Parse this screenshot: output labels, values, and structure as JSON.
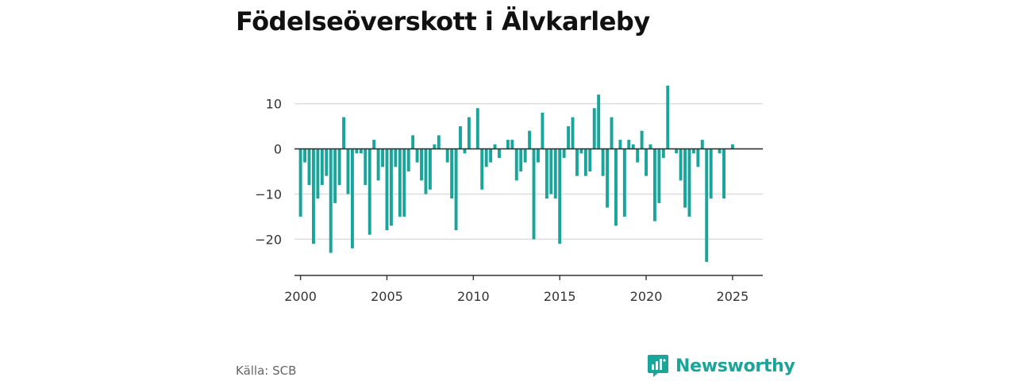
{
  "title": "Födelseöverskott i Älvkarleby",
  "source": "Källa: SCB",
  "brand": {
    "name": "Newsworthy",
    "icon": "newsworthy-logo-icon",
    "color": "#1aa59b"
  },
  "colors": {
    "bar": "#1aa59b",
    "grid": "#dddddd",
    "axis": "#333333",
    "tick": "#333333"
  },
  "chart_data": {
    "type": "bar",
    "title": "Födelseöverskott i Älvkarleby",
    "xlabel": "",
    "ylabel": "",
    "ylim": [
      -28,
      18
    ],
    "xlim": [
      1999.65,
      2026.75
    ],
    "xticks": [
      "2000",
      "2005",
      "2010",
      "2015",
      "2020",
      "2025"
    ],
    "xtick_values": [
      2000,
      2005,
      2010,
      2015,
      2020,
      2025
    ],
    "yticks": [
      "10",
      "0",
      "−10",
      "−20"
    ],
    "ytick_values": [
      10,
      0,
      -10,
      -20
    ],
    "grid": true,
    "frequency": "quarterly",
    "start": "2000 Q1",
    "values": [
      -15,
      -3,
      -8,
      -21,
      -11,
      -8,
      -6,
      -23,
      -12,
      -8,
      7,
      -10,
      -22,
      -1,
      -1,
      -8,
      -19,
      2,
      -7,
      -4,
      -18,
      -17,
      -4,
      -15,
      -15,
      -5,
      3,
      -3,
      -7,
      -10,
      -9,
      1,
      3,
      0,
      -3,
      -11,
      -18,
      5,
      -1,
      7,
      0,
      9,
      -9,
      -4,
      -3,
      1,
      -2,
      0,
      2,
      2,
      -7,
      -5,
      -3,
      4,
      -20,
      -3,
      8,
      -11,
      -10,
      -11,
      -21,
      -2,
      5,
      7,
      -6,
      -1,
      -6,
      -5,
      9,
      12,
      -6,
      -13,
      7,
      -17,
      2,
      -15,
      2,
      1,
      -3,
      4,
      -6,
      1,
      -16,
      -12,
      -2,
      14,
      0,
      -1,
      -7,
      -13,
      -15,
      -1,
      -4,
      2,
      -25,
      -11,
      0,
      -1,
      -11,
      0,
      1
    ]
  }
}
